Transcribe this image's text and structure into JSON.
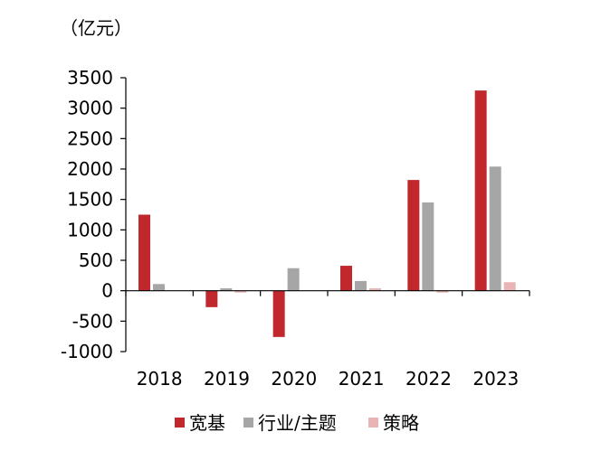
{
  "chart_data": {
    "type": "bar",
    "unit_label": "（亿元）",
    "categories": [
      "2018",
      "2019",
      "2020",
      "2021",
      "2022",
      "2023"
    ],
    "series": [
      {
        "name": "宽基",
        "color": "#C0282D",
        "values": [
          1250,
          -270,
          -760,
          410,
          1820,
          3290
        ]
      },
      {
        "name": "行业/主题",
        "color": "#A6A6A6",
        "values": [
          110,
          40,
          370,
          160,
          1450,
          2040
        ]
      },
      {
        "name": "策略",
        "color": "#E8B4B4",
        "values": [
          0,
          -30,
          0,
          40,
          -30,
          140
        ]
      }
    ],
    "ylim": [
      -1000,
      3500
    ],
    "yticks": [
      3500,
      3000,
      2500,
      2000,
      1500,
      1000,
      500,
      0,
      -500,
      -1000
    ],
    "grid": false,
    "legend_position": "bottom"
  }
}
